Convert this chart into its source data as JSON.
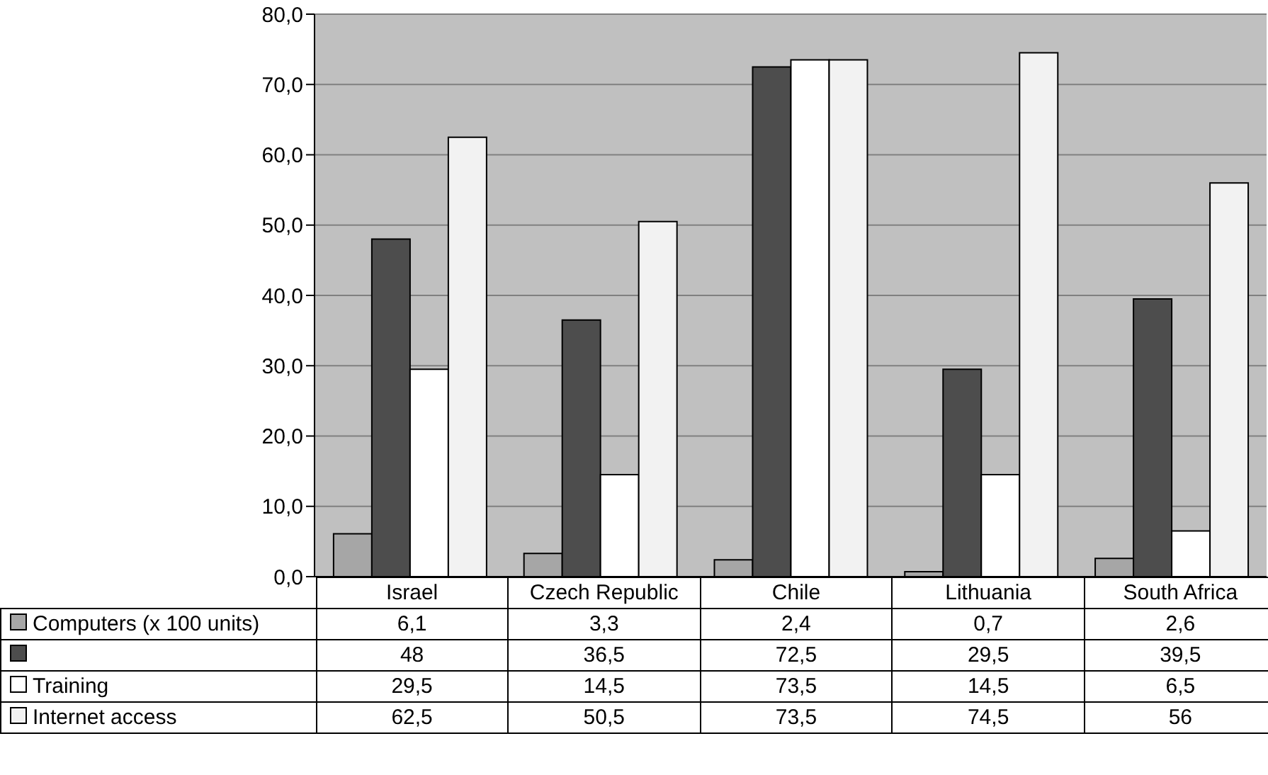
{
  "chart_data": {
    "type": "bar",
    "categories": [
      "Israel",
      "Czech Republic",
      "Chile",
      "Lithuania",
      "South Africa"
    ],
    "series": [
      {
        "name": "Computers (x 100 units)",
        "color": "#a6a6a6",
        "values": [
          6.1,
          3.3,
          2.4,
          0.7,
          2.6
        ],
        "value_labels": [
          "6,1",
          "3,3",
          "2,4",
          "0,7",
          "2,6"
        ]
      },
      {
        "color": "#4d4d4d",
        "values": [
          48,
          36.5,
          72.5,
          29.5,
          39.5
        ],
        "value_labels": [
          "48",
          "36,5",
          "72,5",
          "29,5",
          "39,5"
        ]
      },
      {
        "name": "Training",
        "color": "#ffffff",
        "values": [
          29.5,
          14.5,
          73.5,
          14.5,
          6.5
        ],
        "value_labels": [
          "29,5",
          "14,5",
          "73,5",
          "14,5",
          "6,5"
        ]
      },
      {
        "name": "Internet access",
        "color": "#f2f2f2",
        "values": [
          62.5,
          50.5,
          73.5,
          74.5,
          56
        ],
        "value_labels": [
          "62,5",
          "50,5",
          "73,5",
          "74,5",
          "56"
        ]
      }
    ],
    "ylim": [
      0,
      80
    ],
    "yticks": [
      {
        "value": 0,
        "label": "0,0"
      },
      {
        "value": 10,
        "label": "10,0"
      },
      {
        "value": 20,
        "label": "20,0"
      },
      {
        "value": 30,
        "label": "30,0"
      },
      {
        "value": 40,
        "label": "40,0"
      },
      {
        "value": 50,
        "label": "50,0"
      },
      {
        "value": 60,
        "label": "60,0"
      },
      {
        "value": 70,
        "label": "70,0"
      },
      {
        "value": 80,
        "label": "80,0"
      }
    ],
    "grid": "y",
    "legend": "bottom"
  }
}
